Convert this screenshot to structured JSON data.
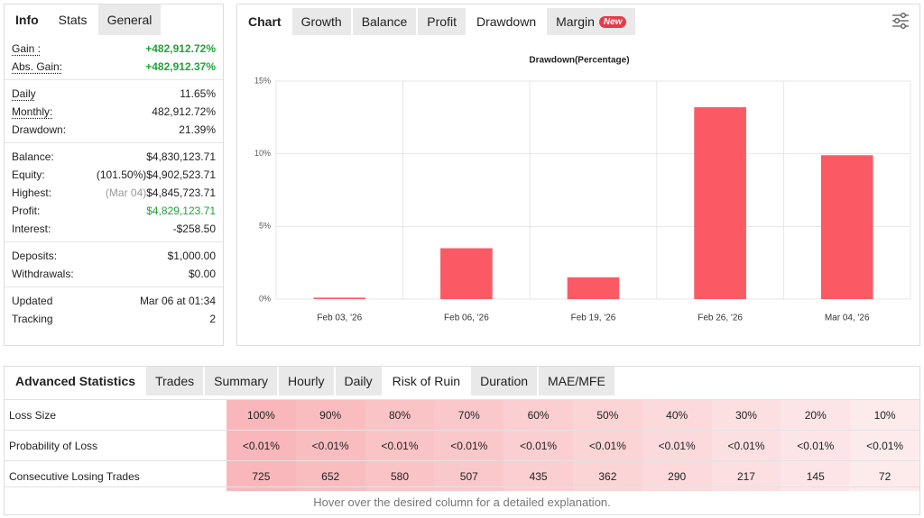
{
  "left_panel": {
    "heading": "Info",
    "tabs": [
      "Stats",
      "General"
    ],
    "active_tab": 0,
    "groups": [
      [
        {
          "label": "Gain :",
          "value": "+482,912.72%",
          "underlined": true,
          "color": "#22a33a",
          "bold": true
        },
        {
          "label": "Abs. Gain:",
          "value": "+482,912.37%",
          "underlined": true,
          "color": "#22a33a",
          "bold": true
        }
      ],
      [
        {
          "label": "Daily",
          "value": "11.65%",
          "underlined": true
        },
        {
          "label": "Monthly:",
          "value": "482,912.72%",
          "underlined": true
        },
        {
          "label": "Drawdown:",
          "value": "21.39%"
        }
      ],
      [
        {
          "label": "Balance:",
          "value": "$4,830,123.71"
        },
        {
          "label": "Equity:",
          "note": "(101.50%)",
          "value": "$4,902,523.71"
        },
        {
          "label": "Highest:",
          "note": "(Mar 04)",
          "note_color": "#999999",
          "value": "$4,845,723.71"
        },
        {
          "label": "Profit:",
          "value": "$4,829,123.71",
          "color": "#22a33a"
        },
        {
          "label": "Interest:",
          "value": "-$258.50"
        }
      ],
      [
        {
          "label": "Deposits:",
          "value": "$1,000.00"
        },
        {
          "label": "Withdrawals:",
          "value": "$0.00"
        }
      ],
      [
        {
          "label": "Updated",
          "value": "Mar 06 at 01:34"
        },
        {
          "label": "Tracking",
          "value": "2"
        }
      ]
    ]
  },
  "chart_panel": {
    "heading": "Chart",
    "tabs": [
      "Growth",
      "Balance",
      "Profit",
      "Drawdown",
      "Margin"
    ],
    "active_tab": 3,
    "badge": "New",
    "badge_tab": 4
  },
  "chart_data": {
    "type": "bar",
    "title": "Drawdown(Percentage)",
    "categories": [
      "Feb 03, '26",
      "Feb 06, '26",
      "Feb 19, '26",
      "Feb 26, '26",
      "Mar 04, '26"
    ],
    "values": [
      0.1,
      3.5,
      1.5,
      13.2,
      9.9
    ],
    "color": "#fb5a64",
    "ylim": [
      0,
      15
    ],
    "yticks": [
      {
        "value": 0,
        "label": "0%"
      },
      {
        "value": 5,
        "label": "5%"
      },
      {
        "value": 10,
        "label": "10%"
      },
      {
        "value": 15,
        "label": "15%"
      }
    ],
    "grid": true
  },
  "stats_panel": {
    "heading": "Advanced Statistics",
    "tabs": [
      "Trades",
      "Summary",
      "Hourly",
      "Daily",
      "Risk of Ruin",
      "Duration",
      "MAE/MFE"
    ],
    "active_tab": 4,
    "table": {
      "rows": [
        [
          "Loss Size",
          "100%",
          "90%",
          "80%",
          "70%",
          "60%",
          "50%",
          "40%",
          "30%",
          "20%",
          "10%"
        ],
        [
          "Probability of Loss",
          "<0.01%",
          "<0.01%",
          "<0.01%",
          "<0.01%",
          "<0.01%",
          "<0.01%",
          "<0.01%",
          "<0.01%",
          "<0.01%",
          "<0.01%"
        ],
        [
          "Consecutive Losing Trades",
          "725",
          "652",
          "580",
          "507",
          "435",
          "362",
          "290",
          "217",
          "145",
          "72"
        ]
      ]
    },
    "footer": "Hover over the desired column for a detailed explanation."
  }
}
